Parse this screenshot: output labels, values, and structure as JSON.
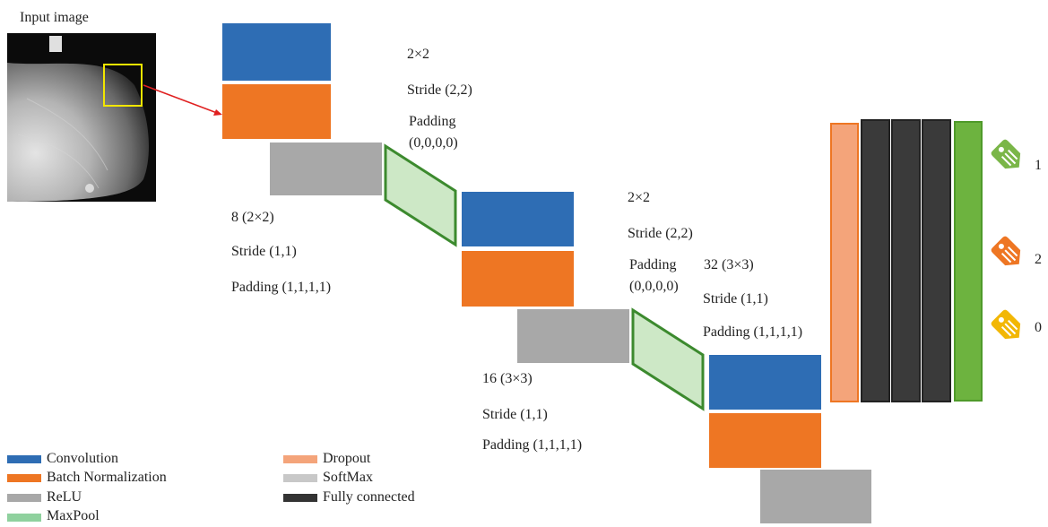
{
  "input": {
    "label": "Input image"
  },
  "stage1": {
    "pool_size": "2×2",
    "pool_stride": "Stride (2,2)",
    "pool_padding_label": "Padding",
    "pool_padding_value": "(0,0,0,0)",
    "conv_filters": "8 (2×2)",
    "conv_stride": "Stride (1,1)",
    "conv_padding": "Padding (1,1,1,1)"
  },
  "stage2": {
    "pool_size": "2×2",
    "pool_stride": "Stride (2,2)",
    "pool_padding_label": "Padding",
    "pool_padding_value": "(0,0,0,0)",
    "conv_filters": "16 (3×3)",
    "conv_stride": "Stride (1,1)",
    "conv_padding": "Padding (1,1,1,1)"
  },
  "stage3": {
    "conv_filters": "32 (3×3)",
    "conv_stride": "Stride (1,1)",
    "conv_padding": "Padding (1,1,1,1)"
  },
  "outputs": [
    {
      "label": "1",
      "icon": "tag-icon",
      "color": "#7ab648"
    },
    {
      "label": "2",
      "icon": "tag-icon",
      "color": "#ee7623"
    },
    {
      "label": "0",
      "icon": "tag-icon",
      "color": "#f2b705"
    }
  ],
  "legend": [
    {
      "label": "Convolution",
      "color": "#2e6db4"
    },
    {
      "label": "Batch Normalization",
      "color": "#ee7623"
    },
    {
      "label": "ReLU",
      "color": "#a8a8a8"
    },
    {
      "label": "MaxPool",
      "color": "#8fd19e"
    },
    {
      "label": "Dropout",
      "color": "#f4a47a"
    },
    {
      "label": "SoftMax",
      "color": "#c8c8c8"
    },
    {
      "label": "Fully connected",
      "color": "#333333"
    }
  ]
}
